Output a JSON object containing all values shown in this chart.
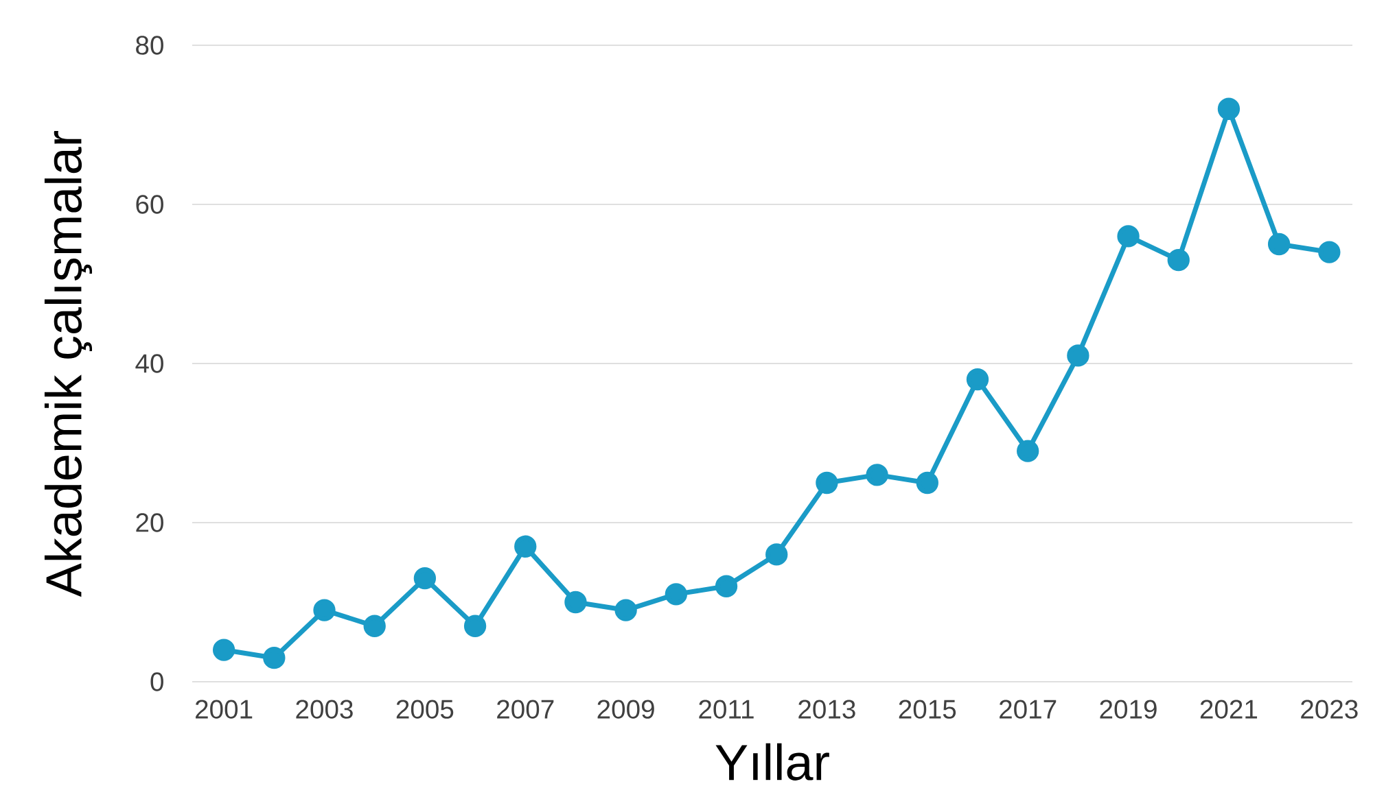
{
  "chart_data": {
    "type": "line",
    "xlabel": "Yıllar",
    "ylabel": "Akademik çalışmalar",
    "x": [
      2001,
      2002,
      2003,
      2004,
      2005,
      2006,
      2007,
      2008,
      2009,
      2010,
      2011,
      2012,
      2013,
      2014,
      2015,
      2016,
      2017,
      2018,
      2019,
      2020,
      2021,
      2022,
      2023
    ],
    "series": [
      {
        "color": "#1a9bc7",
        "values": [
          4,
          3,
          9,
          7,
          13,
          7,
          17,
          10,
          9,
          11,
          12,
          16,
          25,
          26,
          25,
          38,
          29,
          41,
          56,
          53,
          72,
          55,
          54
        ]
      }
    ],
    "xlim": [
      2000.37,
      2023.46
    ],
    "ylim": [
      0,
      80
    ],
    "xticks": [
      2001,
      2003,
      2005,
      2007,
      2009,
      2011,
      2013,
      2015,
      2017,
      2019,
      2021,
      2023
    ],
    "yticks": [
      0,
      20,
      40,
      60,
      80
    ],
    "grid": "y",
    "marker": "circle",
    "line_style": "solid"
  }
}
